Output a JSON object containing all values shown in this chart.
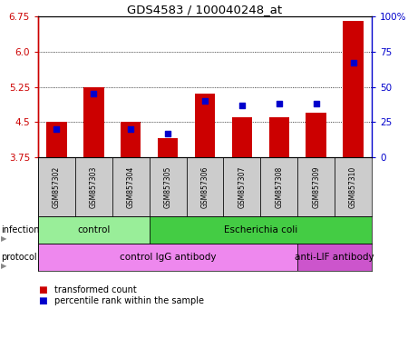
{
  "title": "GDS4583 / 100040248_at",
  "samples": [
    "GSM857302",
    "GSM857303",
    "GSM857304",
    "GSM857305",
    "GSM857306",
    "GSM857307",
    "GSM857308",
    "GSM857309",
    "GSM857310"
  ],
  "transformed_count": [
    4.5,
    5.25,
    4.5,
    4.15,
    5.1,
    4.6,
    4.6,
    4.7,
    6.65
  ],
  "percentile_rank": [
    20,
    45,
    20,
    17,
    40,
    37,
    38,
    38,
    67
  ],
  "ylim_left": [
    3.75,
    6.75
  ],
  "yticks_left": [
    3.75,
    4.5,
    5.25,
    6.0,
    6.75
  ],
  "ylim_right": [
    0,
    100
  ],
  "yticks_right": [
    0,
    25,
    50,
    75,
    100
  ],
  "yticklabels_right": [
    "0",
    "25",
    "50",
    "75",
    "100%"
  ],
  "bar_color": "#cc0000",
  "dot_color": "#0000cc",
  "bar_width": 0.55,
  "dot_size": 25,
  "grid_lines": [
    4.5,
    5.25,
    6.0
  ],
  "infection_groups": [
    {
      "label": "control",
      "start": 0,
      "end": 3,
      "color": "#99ee99"
    },
    {
      "label": "Escherichia coli",
      "start": 3,
      "end": 9,
      "color": "#44cc44"
    }
  ],
  "protocol_groups": [
    {
      "label": "control IgG antibody",
      "start": 0,
      "end": 7,
      "color": "#ee88ee"
    },
    {
      "label": "anti-LIF antibody",
      "start": 7,
      "end": 9,
      "color": "#cc55cc"
    }
  ],
  "legend_items": [
    {
      "color": "#cc0000",
      "label": "transformed count"
    },
    {
      "color": "#0000cc",
      "label": "percentile rank within the sample"
    }
  ],
  "left_axis_color": "#cc0000",
  "right_axis_color": "#0000cc",
  "sample_box_color": "#cccccc",
  "infection_label": "infection",
  "protocol_label": "protocol"
}
